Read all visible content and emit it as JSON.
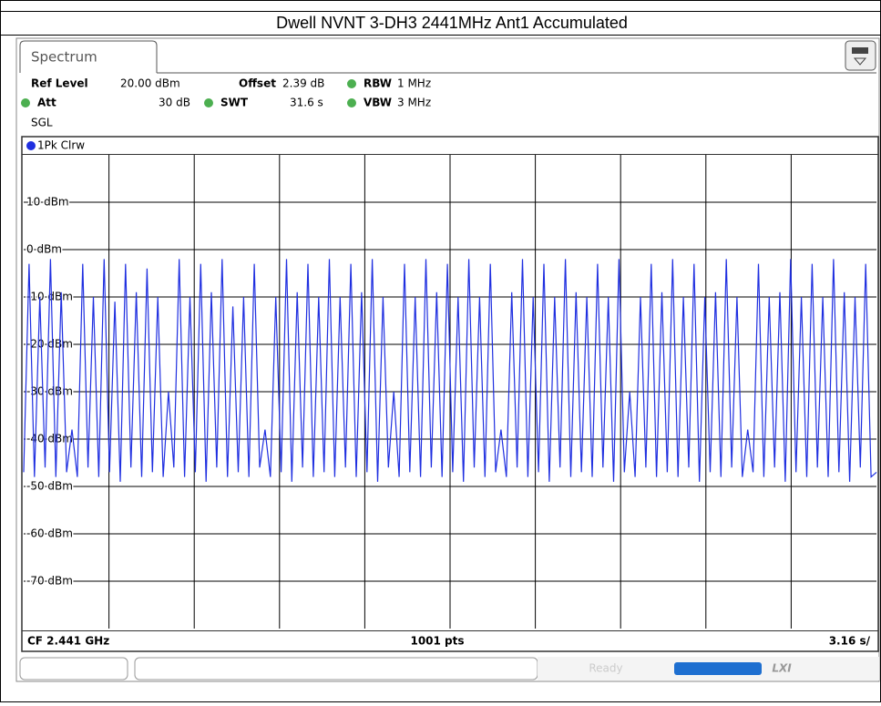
{
  "title": "Dwell NVNT 3-DH3 2441MHz Ant1 Accumulated",
  "tab": "Spectrum",
  "settings": {
    "ref_level_label": "Ref Level",
    "ref_level": "20.00 dBm",
    "offset_label": "Offset",
    "offset": "2.39 dB",
    "rbw_label": "RBW",
    "rbw": "1 MHz",
    "att_label": "Att",
    "att": "30 dB",
    "swt_label": "SWT",
    "swt": "31.6 s",
    "vbw_label": "VBW",
    "vbw": "3 MHz",
    "mode": "SGL"
  },
  "chart_data": {
    "type": "line",
    "trace_label": "1Pk Clrw",
    "color": "#1f2fe0",
    "grid": true,
    "ylim": [
      -80,
      20
    ],
    "yticks": [
      {
        "value": 10,
        "label": "10 dBm"
      },
      {
        "value": 0,
        "label": "0 dBm"
      },
      {
        "value": -10,
        "label": "-10 dBm"
      },
      {
        "value": -20,
        "label": "-20 dBm"
      },
      {
        "value": -30,
        "label": "-30 dBm"
      },
      {
        "value": -40,
        "label": "-40 dBm"
      },
      {
        "value": -50,
        "label": "-50 dBm"
      },
      {
        "value": -60,
        "label": "-60 dBm"
      },
      {
        "value": -70,
        "label": "-70 dBm"
      }
    ],
    "x_divisions": 10,
    "center_frequency": "CF 2.441 GHz",
    "points": "1001 pts",
    "sweep_per_div": "3.16 s/",
    "values": [
      -47,
      -3,
      -48,
      -10,
      -46,
      -2,
      -48,
      -9,
      -47,
      -38,
      -48,
      -3,
      -46,
      -10,
      -48,
      -2,
      -47,
      -11,
      -49,
      -3,
      -46,
      -9,
      -48,
      -4,
      -47,
      -10,
      -48,
      -30,
      -46,
      -2,
      -48,
      -10,
      -47,
      -3,
      -49,
      -9,
      -46,
      -2,
      -48,
      -12,
      -47,
      -10,
      -48,
      -3,
      -46,
      -38,
      -48,
      -10,
      -47,
      -2,
      -49,
      -9,
      -46,
      -3,
      -48,
      -10,
      -47,
      -2,
      -48,
      -10,
      -46,
      -3,
      -48,
      -9,
      -47,
      -2,
      -49,
      -10,
      -46,
      -30,
      -48,
      -3,
      -47,
      -10,
      -48,
      -2,
      -46,
      -9,
      -48,
      -3,
      -47,
      -10,
      -49,
      -2,
      -46,
      -10,
      -48,
      -3,
      -47,
      -38,
      -48,
      -9,
      -46,
      -2,
      -48,
      -10,
      -47,
      -3,
      -49,
      -10,
      -46,
      -2,
      -48,
      -9,
      -47,
      -10,
      -48,
      -3,
      -46,
      -10,
      -49,
      -2,
      -47,
      -30,
      -48,
      -10,
      -46,
      -3,
      -48,
      -9,
      -47,
      -2,
      -48,
      -10,
      -46,
      -3,
      -49,
      -10,
      -47,
      -9,
      -48,
      -2,
      -46,
      -10,
      -48,
      -38,
      -47,
      -3,
      -48,
      -10,
      -46,
      -9,
      -49,
      -2,
      -47,
      -10,
      -48,
      -3,
      -46,
      -10,
      -48,
      -2,
      -47,
      -9,
      -49,
      -10,
      -46,
      -3,
      -48,
      -47
    ]
  },
  "status": "Ready",
  "status_logo": "LXI"
}
